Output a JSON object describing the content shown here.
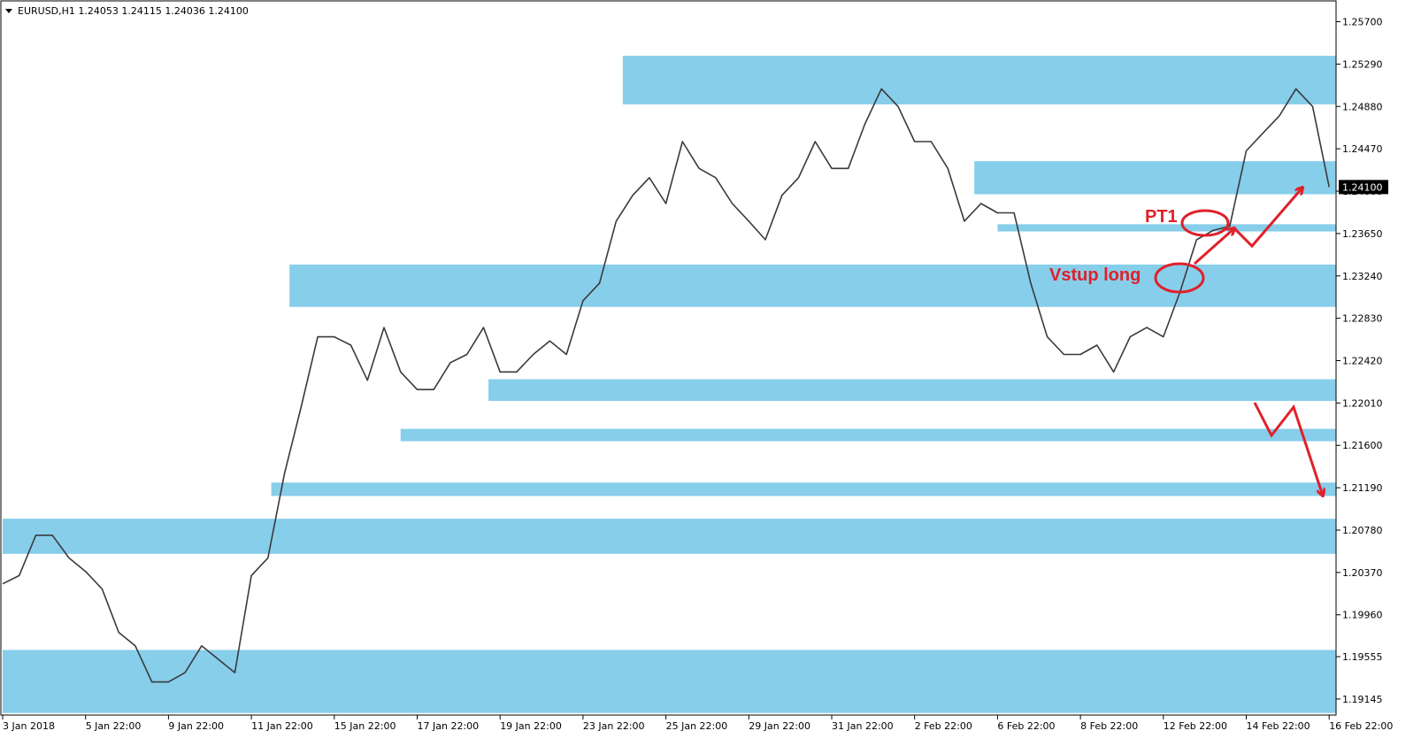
{
  "chart_data": {
    "type": "line",
    "header": "EURUSD,H1  1.24053 1.24115 1.24036 1.24100",
    "color": "#3a3a3a",
    "categories": [
      "3 Jan 2018",
      null,
      null,
      null,
      null,
      "5 Jan 22:00",
      null,
      null,
      null,
      null,
      "9 Jan 22:00",
      null,
      null,
      null,
      null,
      "11 Jan 22:00",
      null,
      null,
      null,
      null,
      "15 Jan 22:00",
      null,
      null,
      null,
      null,
      "17 Jan 22:00",
      null,
      null,
      null,
      null,
      "19 Jan 22:00",
      null,
      null,
      null,
      null,
      "23 Jan 22:00",
      null,
      null,
      null,
      null,
      "25 Jan 22:00",
      null,
      null,
      null,
      null,
      "29 Jan 22:00",
      null,
      null,
      null,
      null,
      "31 Jan 22:00",
      null,
      null,
      null,
      null,
      "2 Feb 22:00",
      null,
      null,
      null,
      null,
      "6 Feb 22:00",
      null,
      null,
      null,
      null,
      "8 Feb 22:00",
      null,
      null,
      null,
      null,
      "12 Feb 22:00",
      null,
      null,
      null,
      null,
      "14 Feb 22:00",
      null,
      null,
      null,
      null,
      "16 Feb 22:00"
    ],
    "values": [
      1.2026,
      1.2034,
      1.2073,
      1.2073,
      1.2051,
      1.2038,
      1.2021,
      1.1979,
      1.1966,
      1.1931,
      1.1931,
      1.194,
      1.1966,
      1.1953,
      1.194,
      1.2034,
      1.2051,
      1.2133,
      1.2197,
      1.2265,
      1.2265,
      1.2257,
      1.2223,
      1.2274,
      1.2231,
      1.2214,
      1.2214,
      1.224,
      1.2248,
      1.2274,
      1.2231,
      1.2231,
      1.2248,
      1.2261,
      1.2248,
      1.23,
      1.2317,
      1.2377,
      1.2402,
      1.2419,
      1.2394,
      1.2454,
      1.2428,
      1.2419,
      1.2394,
      1.2377,
      1.2359,
      1.2402,
      1.2419,
      1.2454,
      1.2428,
      1.2428,
      1.2471,
      1.2505,
      1.2488,
      1.2454,
      1.2454,
      1.2428,
      1.2377,
      1.2394,
      1.2385,
      1.2385,
      1.2317,
      1.2265,
      1.2248,
      1.2248,
      1.2257,
      1.2231,
      1.2265,
      1.2274,
      1.2265,
      1.2308,
      1.2359,
      1.2368,
      1.2372,
      1.2445,
      1.2462,
      1.2479,
      1.2505,
      1.2488,
      1.241
    ],
    "ylim": [
      1.1899,
      1.2591
    ],
    "yticks": [
      {
        "value": 1.257,
        "label": "1.25700"
      },
      {
        "value": 1.2529,
        "label": "1.25290"
      },
      {
        "value": 1.2488,
        "label": "1.24880"
      },
      {
        "value": 1.2447,
        "label": "1.24470"
      },
      {
        "value": 1.2406,
        "label": "1.24060"
      },
      {
        "value": 1.2365,
        "label": "1.23650"
      },
      {
        "value": 1.2324,
        "label": "1.23240"
      },
      {
        "value": 1.2283,
        "label": "1.22830"
      },
      {
        "value": 1.2242,
        "label": "1.22420"
      },
      {
        "value": 1.2201,
        "label": "1.22010"
      },
      {
        "value": 1.216,
        "label": "1.21600"
      },
      {
        "value": 1.2119,
        "label": "1.21190"
      },
      {
        "value": 1.2078,
        "label": "1.20780"
      },
      {
        "value": 1.2037,
        "label": "1.20370"
      },
      {
        "value": 1.1996,
        "label": "1.19960"
      },
      {
        "value": 1.19555,
        "label": "1.19555"
      },
      {
        "value": 1.19145,
        "label": "1.19145"
      }
    ],
    "last_price": {
      "value": 1.241,
      "label": "1.24100"
    },
    "zone_color": "#87ceeb",
    "zones": [
      {
        "start": 37.4,
        "top": 1.2537,
        "bottom": 1.249
      },
      {
        "start": 58.6,
        "top": 1.2435,
        "bottom": 1.2403
      },
      {
        "start": 60.0,
        "top": 1.2374,
        "bottom": 1.2367
      },
      {
        "start": 17.3,
        "top": 1.2335,
        "bottom": 1.2294
      },
      {
        "start": 29.3,
        "top": 1.2224,
        "bottom": 1.2203
      },
      {
        "start": 24.0,
        "top": 1.2176,
        "bottom": 1.2164
      },
      {
        "start": 16.2,
        "top": 1.2124,
        "bottom": 1.2111
      },
      {
        "start": 0,
        "top": 1.2089,
        "bottom": 1.2055
      },
      {
        "start": 0,
        "top": 1.1962,
        "bottom": 1.1901
      }
    ],
    "annotations": [
      "PT1",
      "Vstup long"
    ]
  }
}
